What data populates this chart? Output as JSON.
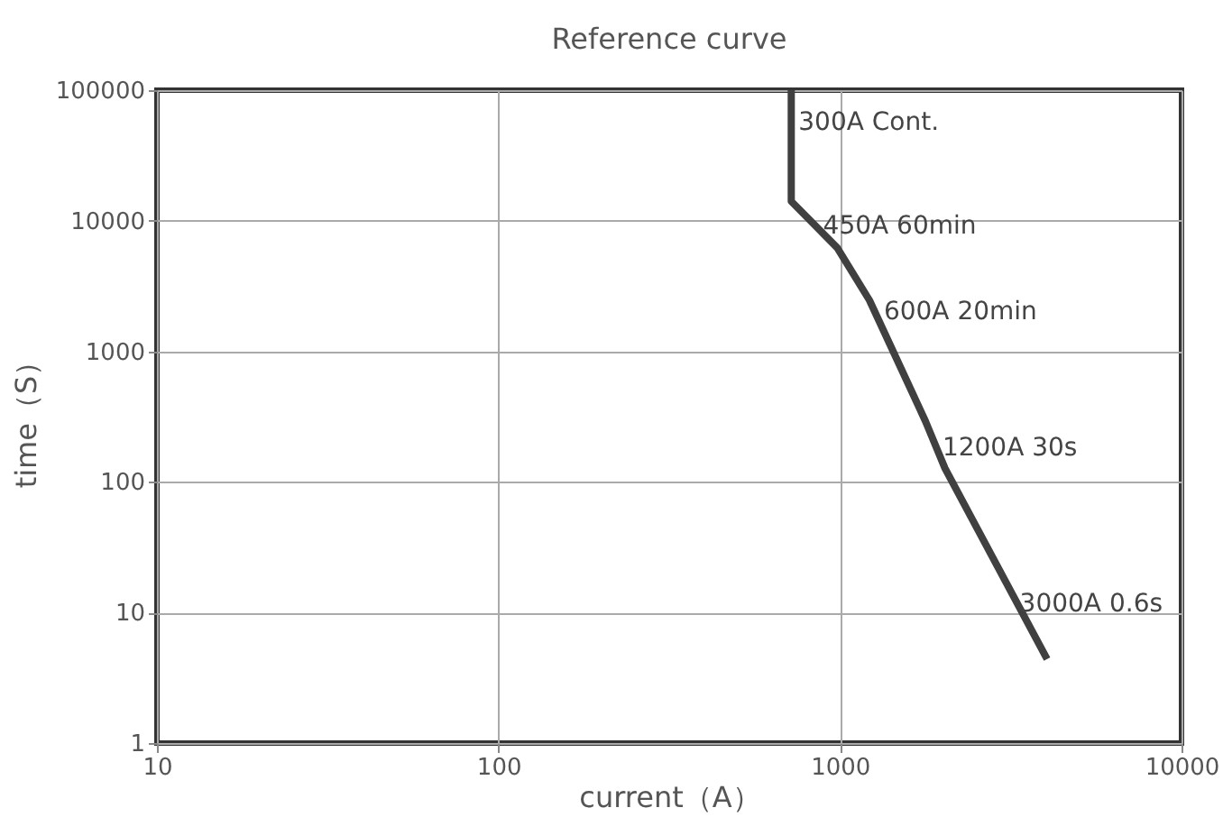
{
  "chart_data": {
    "type": "line",
    "title": "Reference curve",
    "xlabel": "current（A）",
    "ylabel": "time（S）",
    "log": "xy",
    "grid": true,
    "marker": "none",
    "line_style": "solid",
    "x": [
      720,
      720,
      982,
      1220,
      1780,
      2030,
      4040
    ],
    "series": [
      {
        "color": "#404040",
        "values": [
          100000,
          14100,
          6200,
          2460,
          291,
          127,
          4.4
        ]
      }
    ],
    "xlim": [
      10,
      10000
    ],
    "xticks": [
      10,
      100,
      1000,
      10000
    ],
    "ylim": [
      1,
      100000
    ],
    "yticks": [
      1,
      10,
      100,
      1000,
      10000,
      100000
    ],
    "annotations": [
      {
        "text": "300A  Cont.",
        "x": 720,
        "y": 56000
      },
      {
        "text": "450A  60min",
        "x": 850,
        "y": 9100
      },
      {
        "text": "600A  20min",
        "x": 1280,
        "y": 2000
      },
      {
        "text": "1200A  30s",
        "x": 1900,
        "y": 180
      },
      {
        "text": "3000A  0.6s",
        "x": 3200,
        "y": 11.5
      }
    ]
  }
}
